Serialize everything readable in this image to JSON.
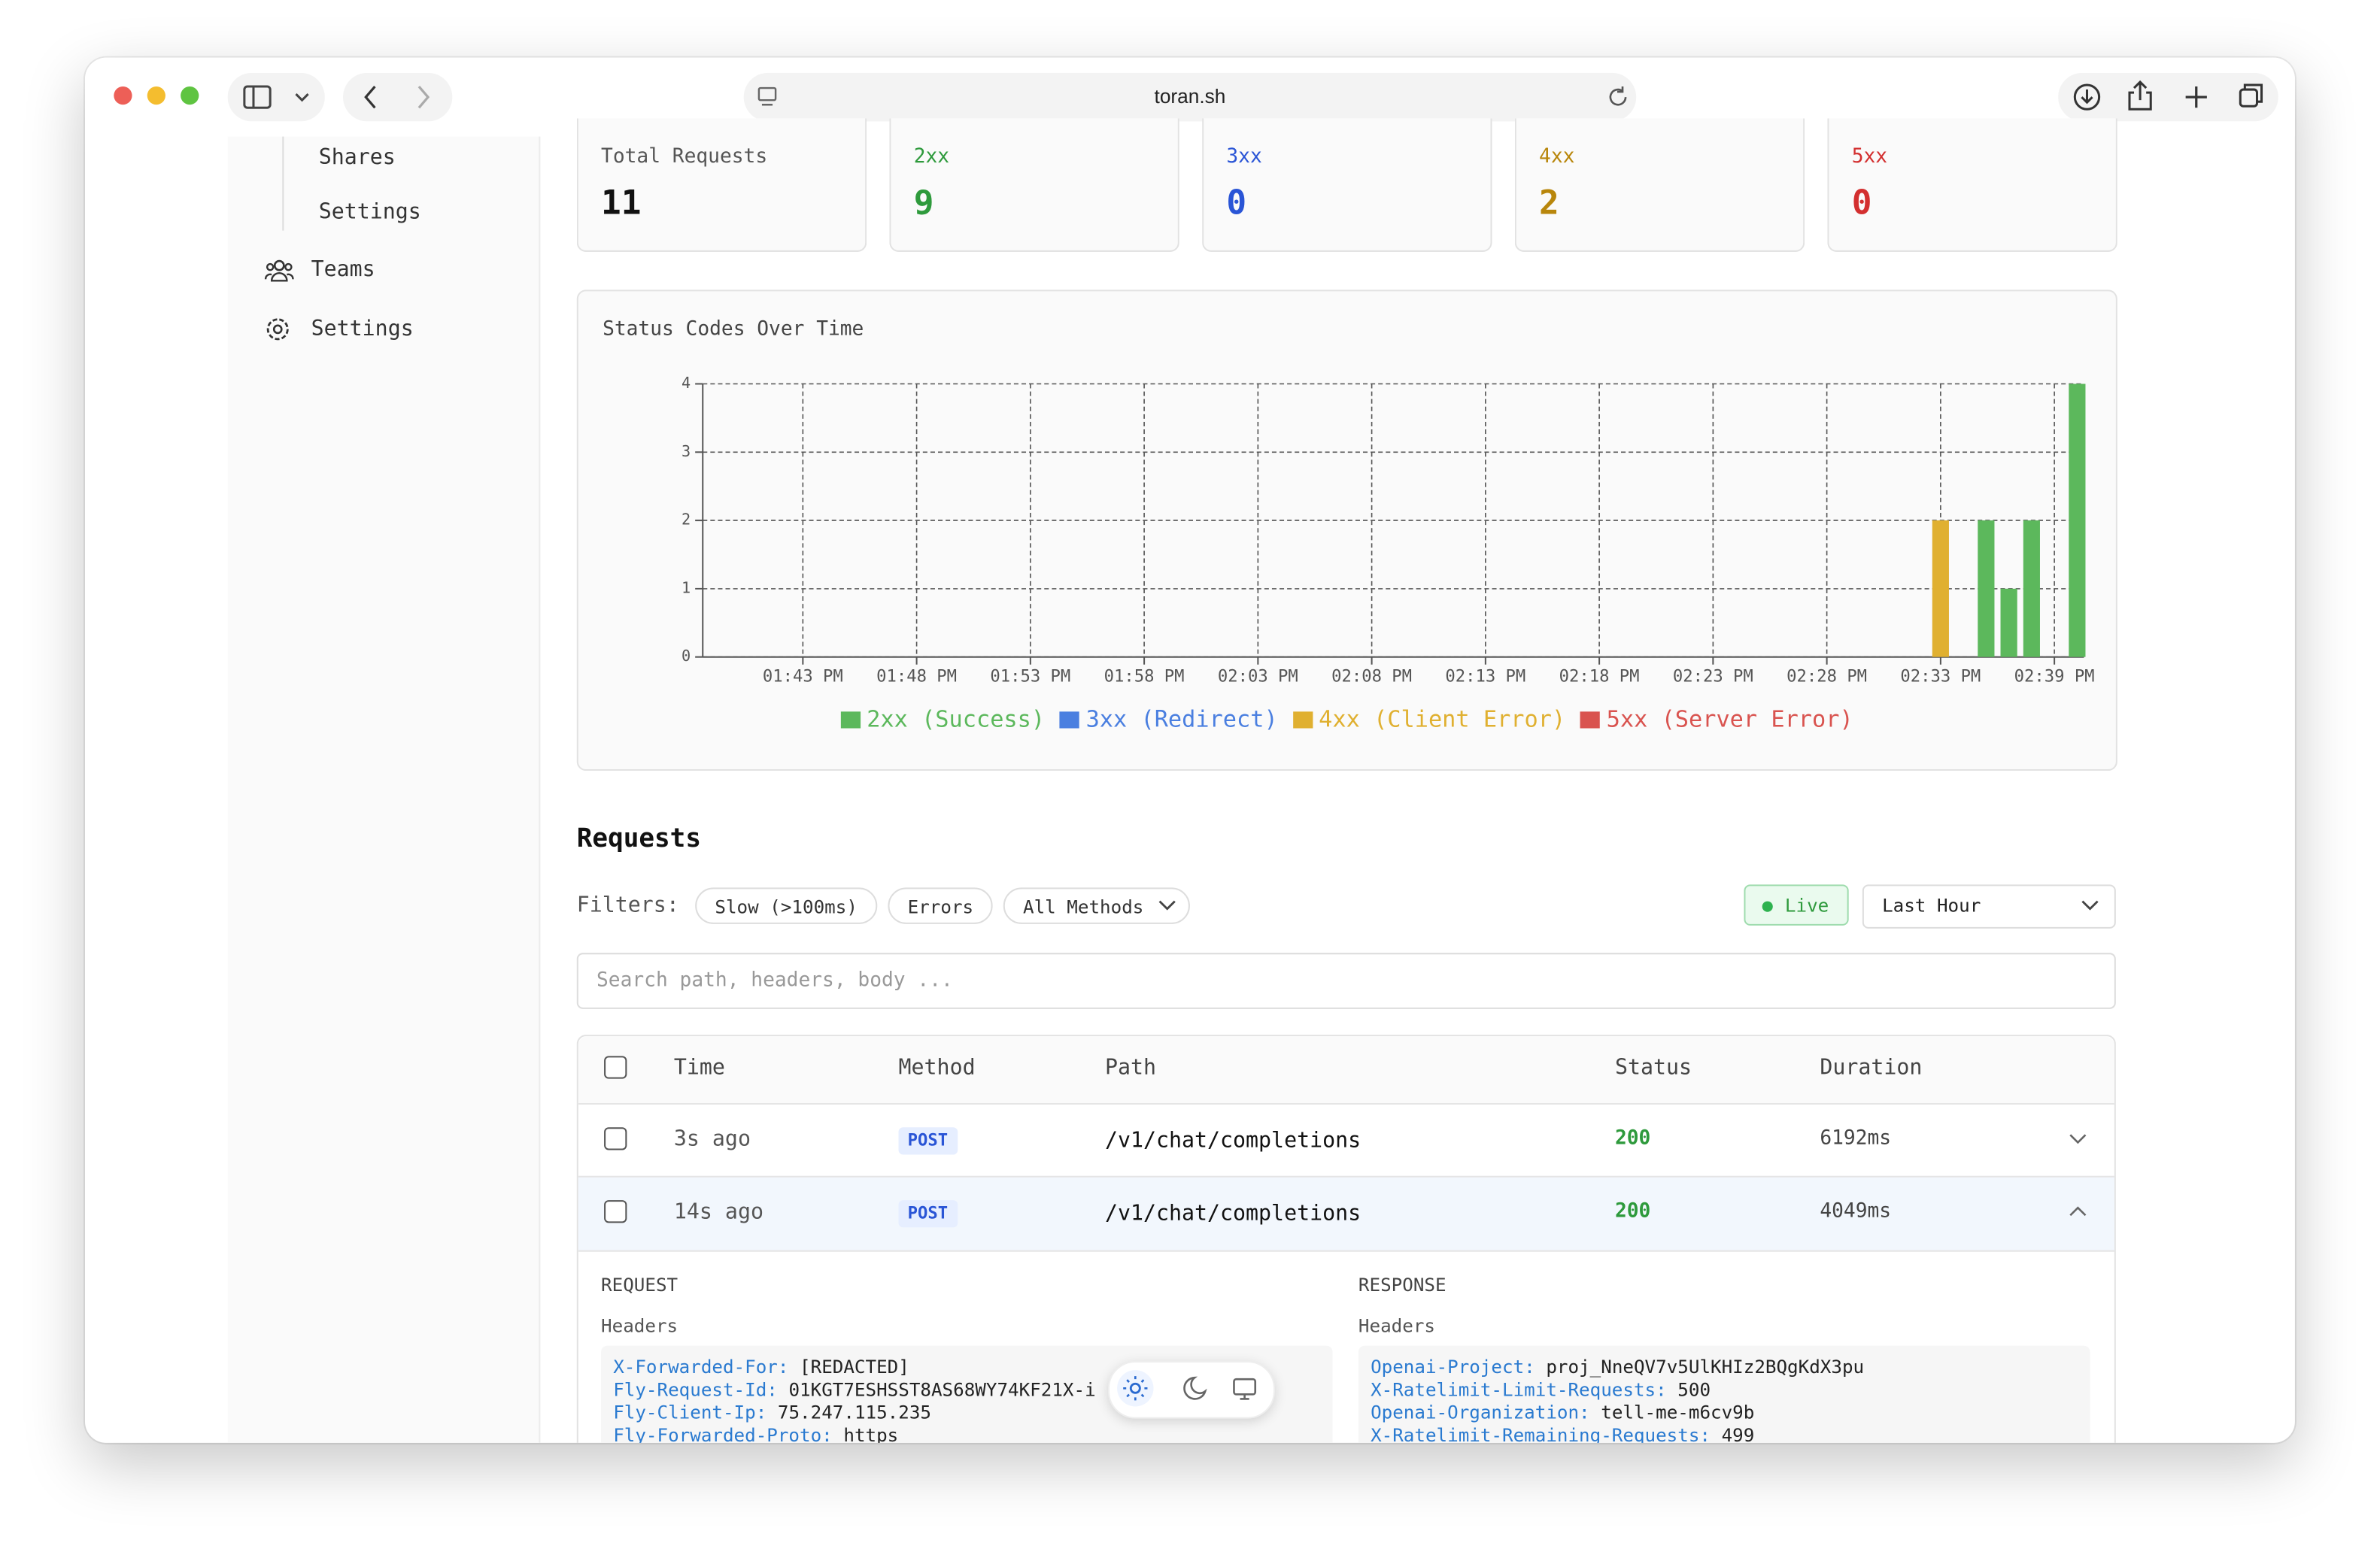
{
  "browser": {
    "url": "toran.sh"
  },
  "sidebar": {
    "sub_items": [
      "Shares",
      "Settings"
    ],
    "nav": [
      "Teams",
      "Settings"
    ]
  },
  "stats": [
    {
      "label": "Total Requests",
      "value": 11
    },
    {
      "label": "2xx",
      "value": 9
    },
    {
      "label": "3xx",
      "value": 0
    },
    {
      "label": "4xx",
      "value": 2
    },
    {
      "label": "5xx",
      "value": 0
    }
  ],
  "chart": {
    "type": "bar",
    "title": "Status Codes Over Time",
    "xlim": [
      98.6,
      159.3
    ],
    "xticks": [
      {
        "value": 103,
        "label": "01:43 PM"
      },
      {
        "value": 108,
        "label": "01:48 PM"
      },
      {
        "value": 113,
        "label": "01:53 PM"
      },
      {
        "value": 118,
        "label": "01:58 PM"
      },
      {
        "value": 123,
        "label": "02:03 PM"
      },
      {
        "value": 128,
        "label": "02:08 PM"
      },
      {
        "value": 133,
        "label": "02:13 PM"
      },
      {
        "value": 138,
        "label": "02:18 PM"
      },
      {
        "value": 143,
        "label": "02:23 PM"
      },
      {
        "value": 148,
        "label": "02:28 PM"
      },
      {
        "value": 153,
        "label": "02:33 PM"
      },
      {
        "value": 158,
        "label": "02:39 PM"
      }
    ],
    "ylim": [
      0,
      4
    ],
    "yticks": [
      0,
      1,
      2,
      3,
      4
    ],
    "grid": true,
    "series": [
      {
        "name": "2xx (Success)",
        "color": "#5cb85c",
        "x": [
          155,
          156,
          157,
          159
        ],
        "values": [
          2,
          1,
          2,
          4
        ]
      },
      {
        "name": "3xx (Redirect)",
        "color": "#4a7fe0",
        "x": [],
        "values": []
      },
      {
        "name": "4xx (Client Error)",
        "color": "#e0b030",
        "x": [
          153
        ],
        "values": [
          2
        ]
      },
      {
        "name": "5xx (Server Error)",
        "color": "#d9534f",
        "x": [],
        "values": []
      }
    ]
  },
  "requests": {
    "title": "Requests",
    "filters_label": "Filters:",
    "filters": [
      "Slow (>100ms)",
      "Errors",
      "All Methods"
    ],
    "live": "Live",
    "range": "Last Hour",
    "search_placeholder": "Search path, headers, body ...",
    "columns": [
      "Time",
      "Method",
      "Path",
      "Status",
      "Duration"
    ],
    "rows": [
      {
        "time": "3s ago",
        "method": "POST",
        "path": "/v1/chat/completions",
        "status": 200,
        "duration": "6192ms"
      },
      {
        "time": "14s ago",
        "method": "POST",
        "path": "/v1/chat/completions",
        "status": 200,
        "duration": "4049ms"
      }
    ],
    "detail": {
      "request": {
        "title": "REQUEST",
        "headers_label": "Headers",
        "headers": [
          {
            "name": "X-Forwarded-For:",
            "value": "[REDACTED]"
          },
          {
            "name": "Fly-Request-Id:",
            "value": "01KGT7ESHSST8AS68WY74KF21X-i"
          },
          {
            "name": "Fly-Client-Ip:",
            "value": "75.247.115.235"
          },
          {
            "name": "Fly-Forwarded-Proto:",
            "value": "https"
          }
        ]
      },
      "response": {
        "title": "RESPONSE",
        "headers_label": "Headers",
        "headers": [
          {
            "name": "Openai-Project:",
            "value": "proj_NneQV7v5UlKHIz2BQgKdX3pu"
          },
          {
            "name": "X-Ratelimit-Limit-Requests:",
            "value": "500"
          },
          {
            "name": "Openai-Organization:",
            "value": "tell-me-m6cv9b"
          },
          {
            "name": "X-Ratelimit-Remaining-Requests:",
            "value": "499"
          }
        ]
      }
    }
  }
}
